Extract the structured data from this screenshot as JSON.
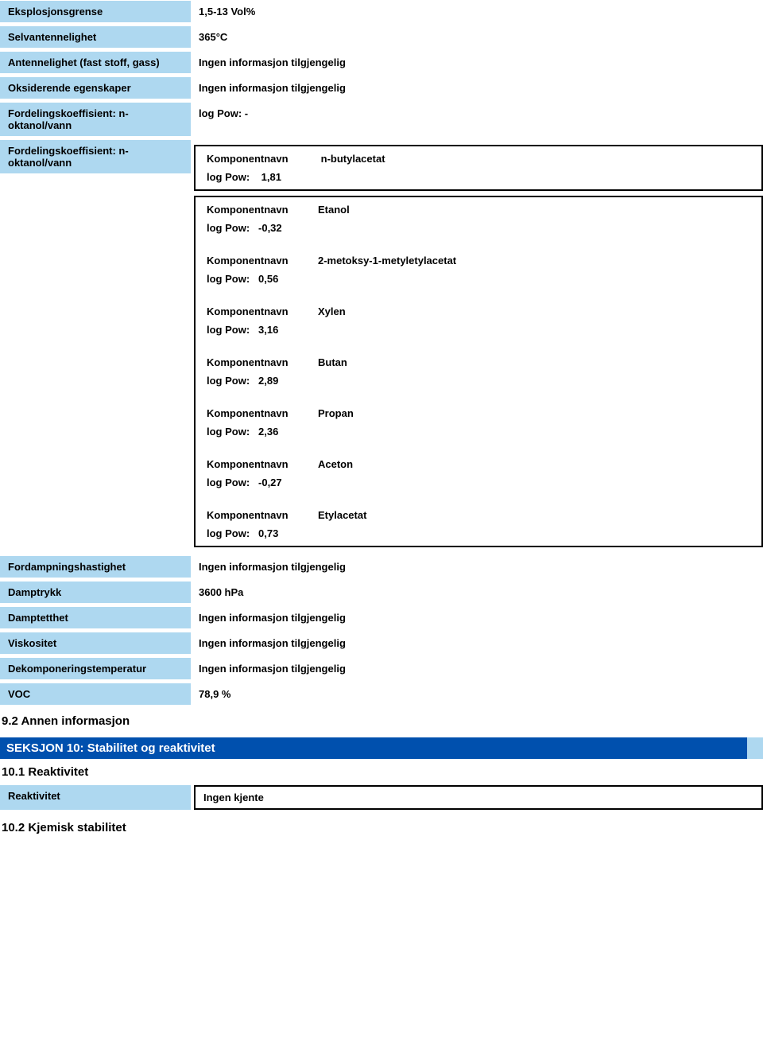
{
  "rows": {
    "explosion_limit": {
      "label": "Eksplosjonsgrense",
      "value": "1,5-13 Vol%"
    },
    "self_ignition": {
      "label": "Selvantennelighet",
      "value": "365°C"
    },
    "ignition_fast": {
      "label": "Antennelighet (fast stoff, gass)",
      "value": "Ingen informasjon tilgjengelig"
    },
    "oxidizing": {
      "label": "Oksiderende egenskaper",
      "value": "Ingen informasjon tilgjengelig"
    },
    "partition1": {
      "label": "Fordelingskoeffisient: n-oktanol/vann",
      "value": "log Pow:    -"
    },
    "partition2_label": "Fordelingskoeffisient: n-oktanol/vann",
    "evap_rate": {
      "label": "Fordampningshastighet",
      "value": "Ingen informasjon tilgjengelig"
    },
    "vapor_pressure": {
      "label": "Damptrykk",
      "value": "3600 hPa"
    },
    "vapor_density": {
      "label": "Damptetthet",
      "value": "Ingen informasjon tilgjengelig"
    },
    "viscosity": {
      "label": "Viskositet",
      "value": "Ingen informasjon tilgjengelig"
    },
    "decomp_temp": {
      "label": "Dekomponeringstemperatur",
      "value": "Ingen informasjon tilgjengelig"
    },
    "voc": {
      "label": "VOC",
      "value": "78,9 %"
    }
  },
  "component_label": "Komponentnavn",
  "logpow_label": "log Pow:",
  "components": [
    {
      "name": "n-butylacetat",
      "logpow": "1,81"
    },
    {
      "name": "Etanol",
      "logpow": "-0,32"
    },
    {
      "name": "2-metoksy-1-metyletylacetat",
      "logpow": "0,56"
    },
    {
      "name": "Xylen",
      "logpow": "3,16"
    },
    {
      "name": "Butan",
      "logpow": "2,89"
    },
    {
      "name": "Propan",
      "logpow": "2,36"
    },
    {
      "name": "Aceton",
      "logpow": "-0,27"
    },
    {
      "name": "Etylacetat",
      "logpow": "0,73"
    }
  ],
  "sub92": "9.2 Annen informasjon",
  "section10_title": "SEKSJON 10: Stabilitet og reaktivitet",
  "sub101": "10.1 Reaktivitet",
  "reactivity_label": "Reaktivitet",
  "reactivity_value": "Ingen kjente",
  "sub102": "10.2 Kjemisk stabilitet"
}
